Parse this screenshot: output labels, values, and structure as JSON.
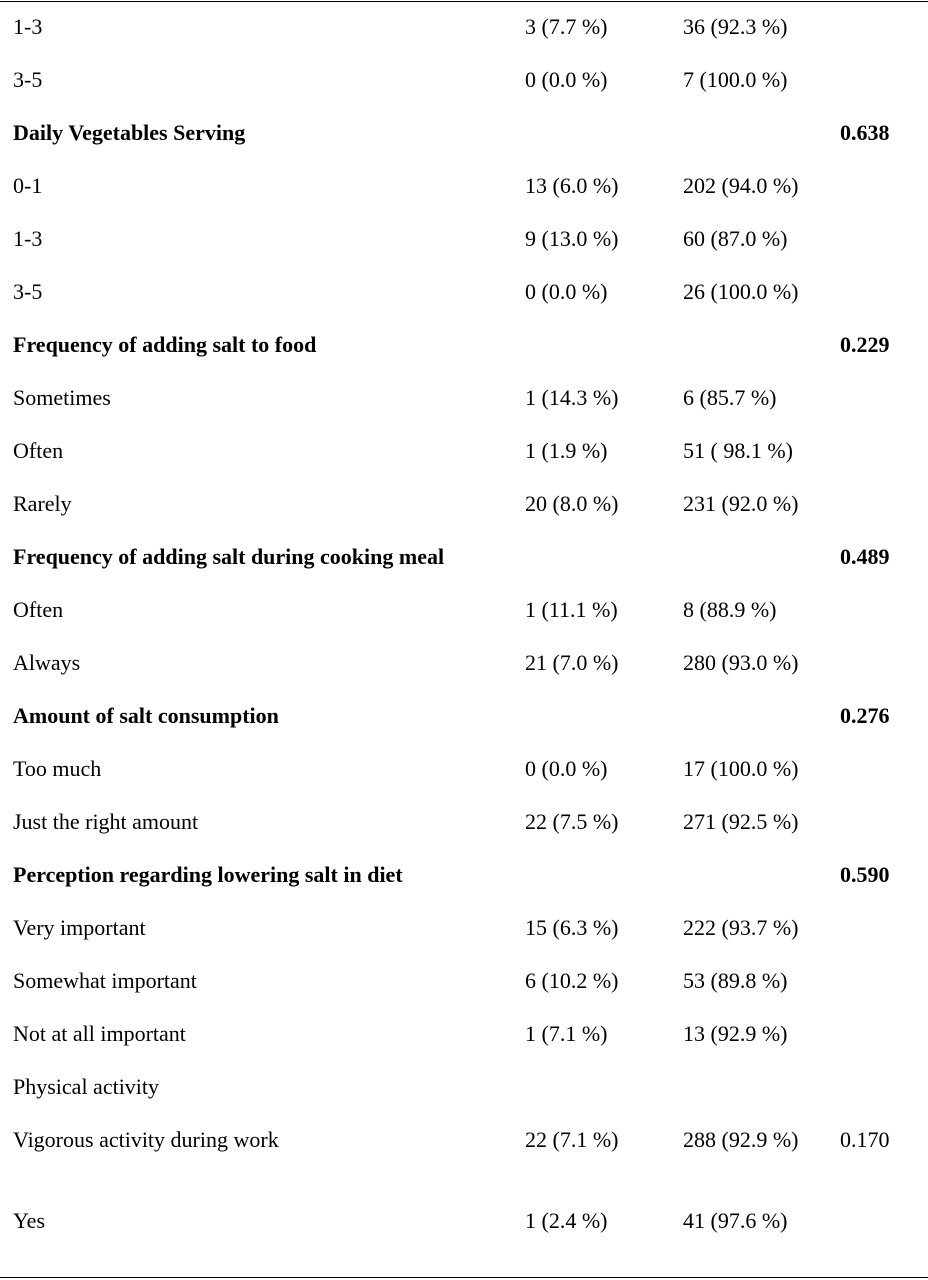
{
  "table": {
    "rows": [
      {
        "label": "1-3",
        "col2": "3 (7.7 %)",
        "col3": "36 (92.3 %)"
      },
      {
        "label": "3-5",
        "col2": "0 (0.0 %)",
        "col3": "7 (100.0 %)"
      },
      {
        "label": "Daily Vegetables Serving",
        "p": "0.638",
        "bold": true
      },
      {
        "label": "0-1",
        "col2": "13 (6.0 %)",
        "col3": "202 (94.0 %)"
      },
      {
        "label": "1-3",
        "col2": "9 (13.0 %)",
        "col3": "60 (87.0 %)"
      },
      {
        "label": "3-5",
        "col2": "0 (0.0 %)",
        "col3": "26 (100.0 %)"
      },
      {
        "label": "Frequency of adding salt to food",
        "p": "0.229",
        "bold": true
      },
      {
        "label": "Sometimes",
        "col2": "1 (14.3 %)",
        "col3": "6 (85.7 %)"
      },
      {
        "label": "Often",
        "col2": "1 (1.9 %)",
        "col3": "51 ( 98.1 %)"
      },
      {
        "label": "Rarely",
        "col2": "20 (8.0 %)",
        "col3": "231 (92.0 %)"
      },
      {
        "label": "Frequency of adding salt during cooking meal",
        "p": "0.489",
        "bold": true
      },
      {
        "label": "Often",
        "col2": "1 (11.1 %)",
        "col3": "8 (88.9 %)"
      },
      {
        "label": "Always",
        "col2": "21 (7.0 %)",
        "col3": "280 (93.0 %)"
      },
      {
        "label": "Amount of salt consumption",
        "p": "0.276",
        "bold": true
      },
      {
        "label": "Too much",
        "col2": "0 (0.0 %)",
        "col3": "17 (100.0 %)"
      },
      {
        "label": "Just the right amount",
        "col2": "22 (7.5 %)",
        "col3": "271 (92.5 %)"
      },
      {
        "label": "Perception regarding lowering salt in diet",
        "p": "0.590",
        "bold": true
      },
      {
        "label": "Very important",
        "col2": "15 (6.3 %)",
        "col3": "222 (93.7 %)"
      },
      {
        "label": "Somewhat important",
        "col2": "6 (10.2 %)",
        "col3": "53 (89.8 %)"
      },
      {
        "label": "Not at all important",
        "col2": "1 (7.1 %)",
        "col3": "13 (92.9 %)"
      },
      {
        "label": "Physical activity"
      },
      {
        "label": "Vigorous activity during work",
        "col2": "22 (7.1 %)",
        "col3": "288 (92.9 %)",
        "p": "0.170"
      },
      {
        "label": "Yes",
        "col2": "1 (2.4 %)",
        "col3": "41 (97.6 %)"
      }
    ]
  }
}
